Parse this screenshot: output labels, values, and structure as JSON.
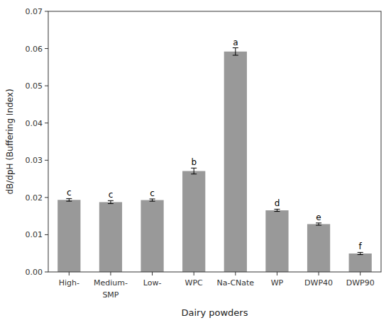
{
  "chart_data": {
    "type": "bar",
    "categories": [
      "High-",
      "Medium-",
      "Low-",
      "WPC",
      "Na-CNate",
      "WP",
      "DWP40",
      "DWP90"
    ],
    "values": [
      0.01935,
      0.01875,
      0.0193,
      0.0271,
      0.0592,
      0.01655,
      0.01285,
      0.00495
    ],
    "errors": [
      0.00035,
      0.0004,
      0.0003,
      0.0008,
      0.001,
      0.0003,
      0.0003,
      0.0003
    ],
    "letters": [
      "c",
      "c",
      "c",
      "b",
      "a",
      "d",
      "e",
      "f"
    ],
    "annotations": [
      {
        "text": "SMP",
        "category": "Medium-"
      }
    ],
    "color": "#999999",
    "ylabel": "dB/dpH (Buffering Index)",
    "xlabel": "Dairy powders",
    "ylim": [
      0.0,
      0.07
    ],
    "yticks": [
      {
        "value": 0.0,
        "label": "0.00"
      },
      0.01,
      0.02,
      0.03,
      0.04,
      0.05,
      0.06,
      0.07
    ],
    "grid": false
  }
}
